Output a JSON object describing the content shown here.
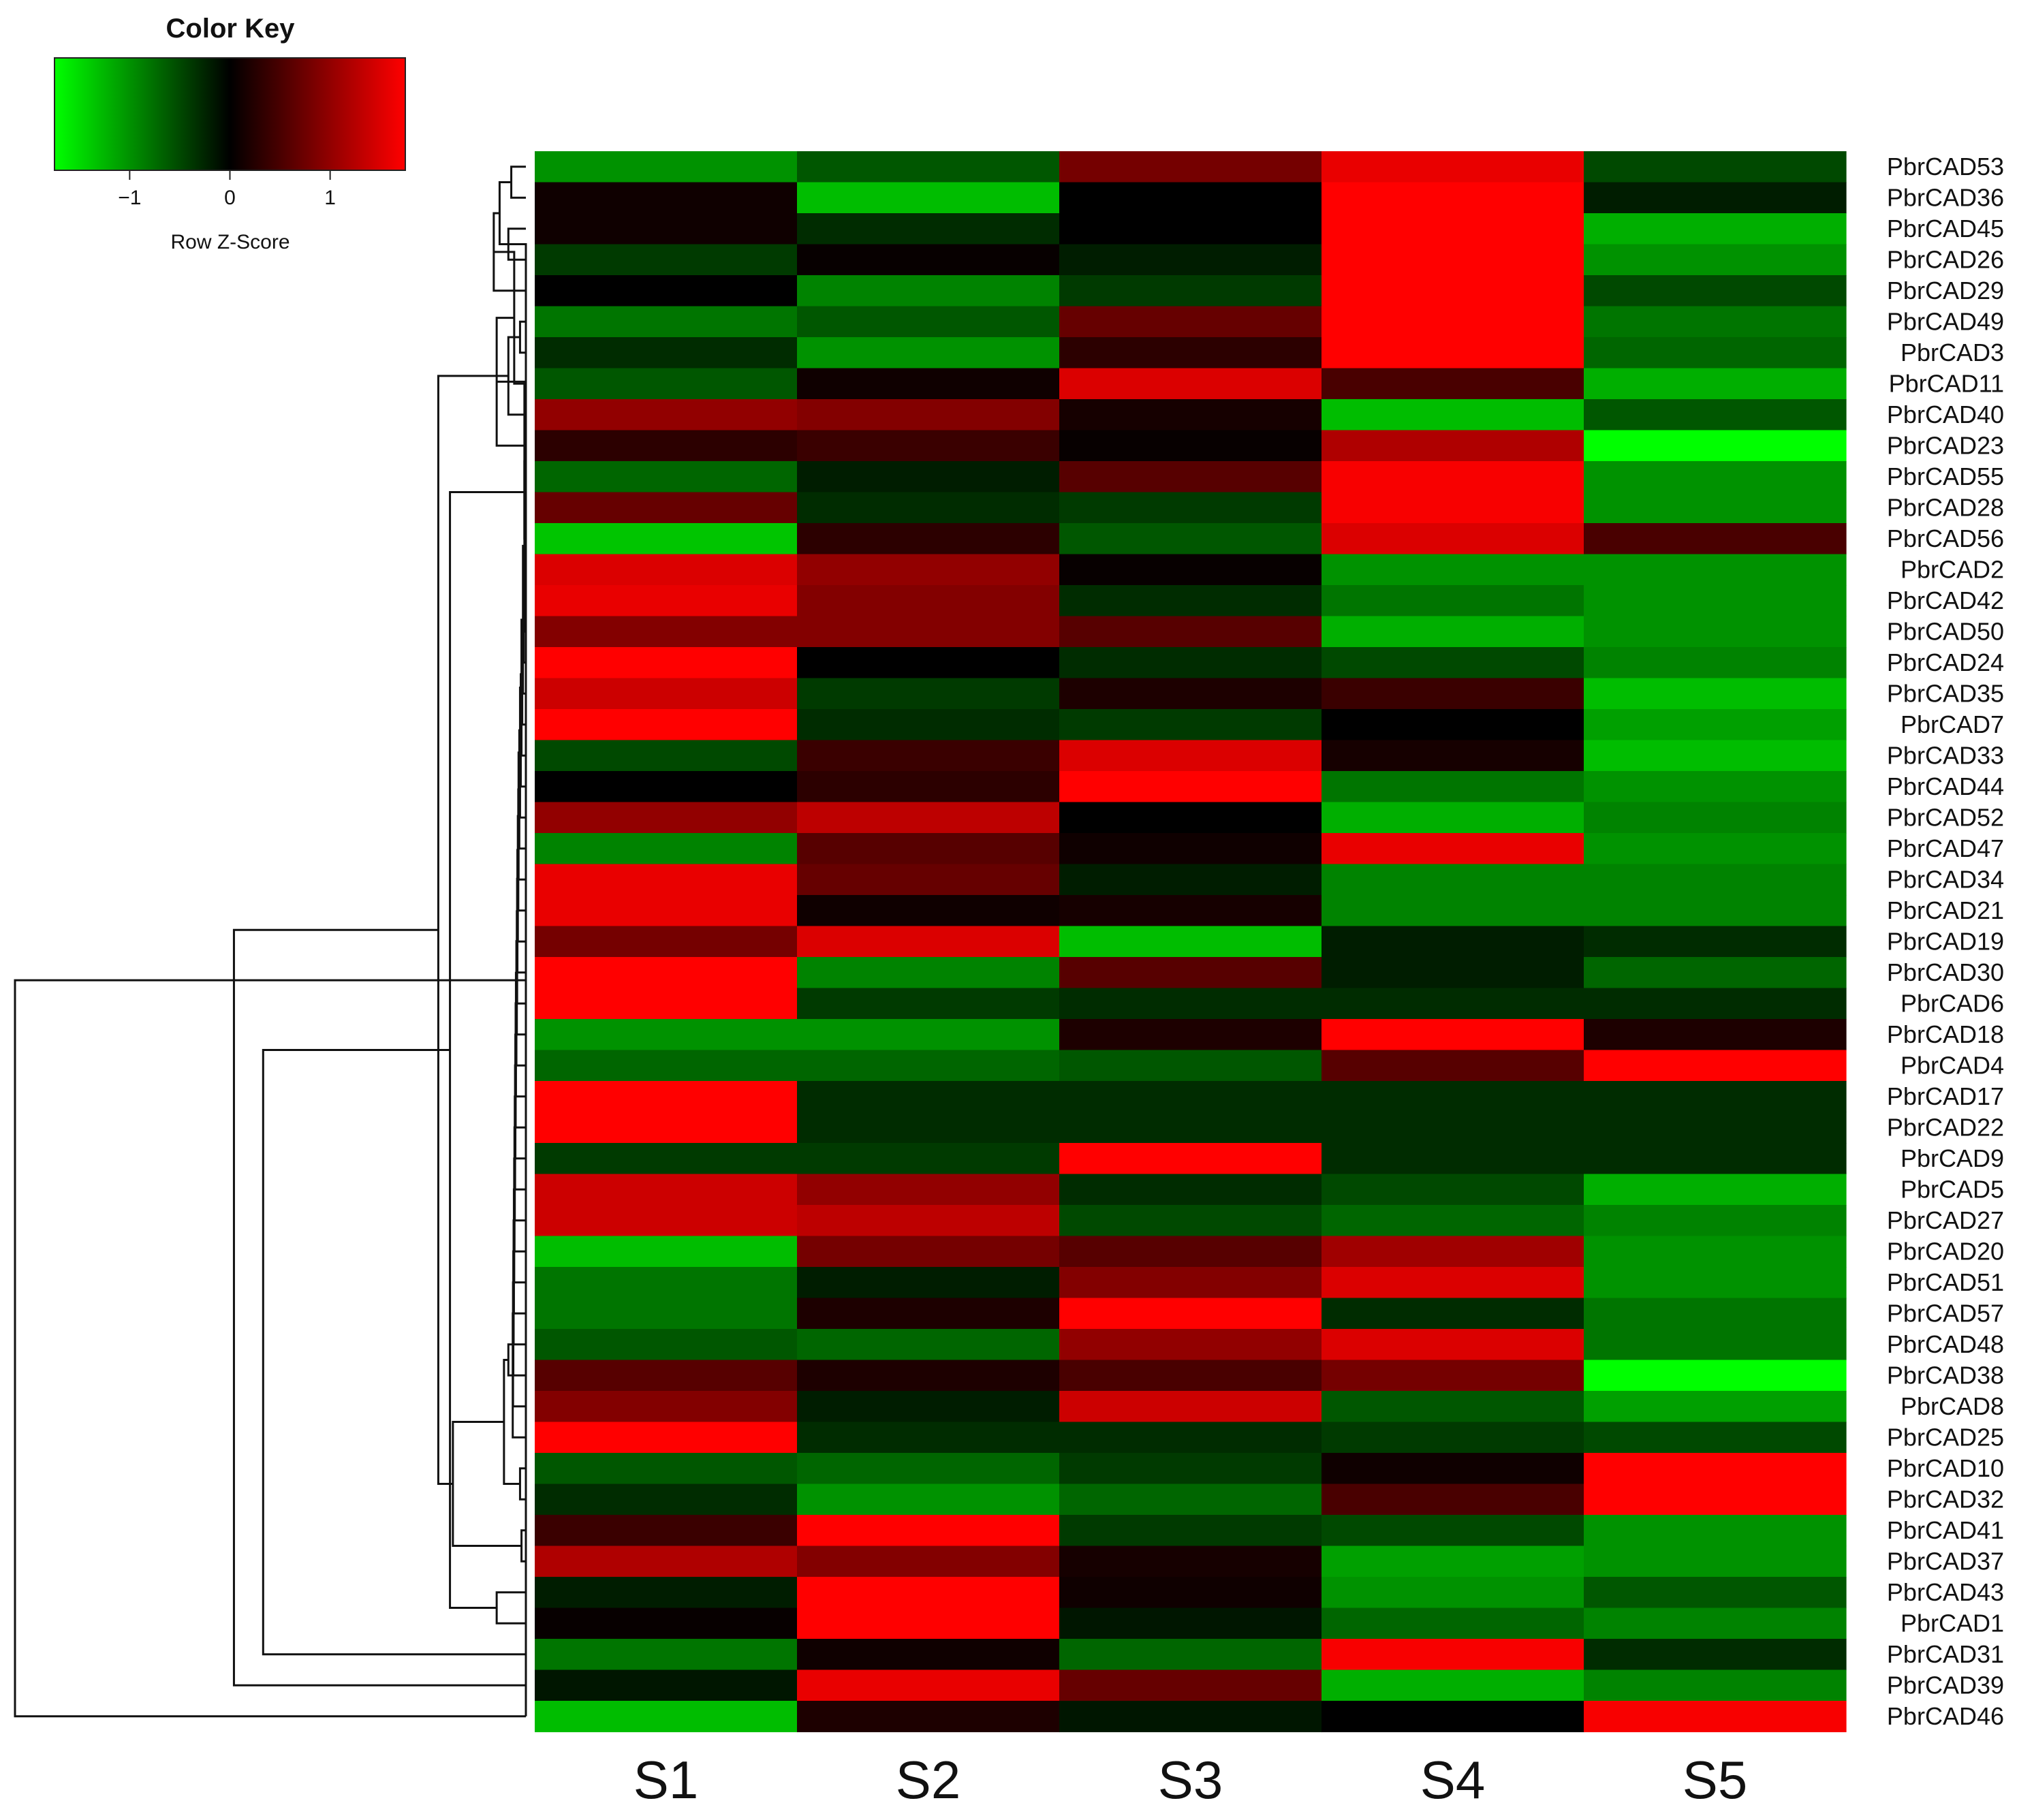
{
  "chart_data": {
    "type": "heatmap",
    "colors": {
      "low": "#00ff00",
      "mid": "#000000",
      "high": "#ff0000"
    },
    "color_key": {
      "title": "Color Key",
      "label": "Row Z-Score",
      "range": [
        -1.75,
        1.75
      ],
      "ticks": [
        -1,
        0,
        1
      ]
    },
    "columns": [
      "S1",
      "S2",
      "S3",
      "S4",
      "S5"
    ],
    "rows": [
      "PbrCAD53",
      "PbrCAD36",
      "PbrCAD45",
      "PbrCAD26",
      "PbrCAD29",
      "PbrCAD49",
      "PbrCAD3",
      "PbrCAD11",
      "PbrCAD40",
      "PbrCAD23",
      "PbrCAD55",
      "PbrCAD28",
      "PbrCAD56",
      "PbrCAD2",
      "PbrCAD42",
      "PbrCAD50",
      "PbrCAD24",
      "PbrCAD35",
      "PbrCAD7",
      "PbrCAD33",
      "PbrCAD44",
      "PbrCAD52",
      "PbrCAD47",
      "PbrCAD34",
      "PbrCAD21",
      "PbrCAD19",
      "PbrCAD30",
      "PbrCAD6",
      "PbrCAD18",
      "PbrCAD4",
      "PbrCAD17",
      "PbrCAD22",
      "PbrCAD9",
      "PbrCAD5",
      "PbrCAD27",
      "PbrCAD20",
      "PbrCAD51",
      "PbrCAD57",
      "PbrCAD48",
      "PbrCAD38",
      "PbrCAD8",
      "PbrCAD25",
      "PbrCAD10",
      "PbrCAD32",
      "PbrCAD41",
      "PbrCAD37",
      "PbrCAD43",
      "PbrCAD1",
      "PbrCAD31",
      "PbrCAD39",
      "PbrCAD46"
    ],
    "values": [
      [
        -1.0,
        -0.6,
        0.8,
        1.6,
        -0.5
      ],
      [
        0.1,
        -1.3,
        0.0,
        1.75,
        -0.2
      ],
      [
        0.1,
        -0.3,
        0.0,
        1.75,
        -1.2
      ],
      [
        -0.4,
        0.05,
        -0.2,
        1.75,
        -1.0
      ],
      [
        0.0,
        -0.9,
        -0.4,
        1.75,
        -0.5
      ],
      [
        -0.8,
        -0.6,
        0.7,
        1.75,
        -0.8
      ],
      [
        -0.3,
        -1.0,
        0.3,
        1.75,
        -0.7
      ],
      [
        -0.6,
        0.1,
        1.5,
        0.5,
        -1.2
      ],
      [
        1.0,
        0.9,
        0.15,
        -1.3,
        -0.6
      ],
      [
        0.3,
        0.4,
        0.05,
        1.2,
        -1.75
      ],
      [
        -0.7,
        -0.2,
        0.6,
        1.7,
        -1.0
      ],
      [
        0.7,
        -0.3,
        -0.4,
        1.7,
        -1.0
      ],
      [
        -1.35,
        0.3,
        -0.6,
        1.5,
        0.5
      ],
      [
        1.5,
        1.0,
        0.05,
        -1.0,
        -1.0
      ],
      [
        1.6,
        0.9,
        -0.3,
        -0.8,
        -1.0
      ],
      [
        0.9,
        0.9,
        0.6,
        -1.2,
        -1.0
      ],
      [
        1.75,
        0.0,
        -0.3,
        -0.5,
        -0.9
      ],
      [
        1.4,
        -0.4,
        0.2,
        0.4,
        -1.3
      ],
      [
        1.75,
        -0.3,
        -0.4,
        0.0,
        -1.1
      ],
      [
        -0.5,
        0.4,
        1.5,
        0.15,
        -1.3
      ],
      [
        0.0,
        0.3,
        1.75,
        -0.8,
        -1.0
      ],
      [
        1.0,
        1.3,
        0.0,
        -1.2,
        -0.9
      ],
      [
        -0.9,
        0.6,
        0.1,
        1.6,
        -1.0
      ],
      [
        1.6,
        0.7,
        -0.2,
        -0.9,
        -0.9
      ],
      [
        1.6,
        0.1,
        0.15,
        -0.9,
        -0.9
      ],
      [
        0.8,
        1.5,
        -1.3,
        -0.2,
        -0.3
      ],
      [
        1.75,
        -0.9,
        0.6,
        -0.2,
        -0.7
      ],
      [
        1.75,
        -0.4,
        -0.3,
        -0.3,
        -0.3
      ],
      [
        -1.0,
        -1.0,
        0.2,
        1.75,
        0.2
      ],
      [
        -0.7,
        -0.7,
        -0.6,
        0.6,
        1.75
      ],
      [
        1.75,
        -0.3,
        -0.3,
        -0.3,
        -0.3
      ],
      [
        1.75,
        -0.3,
        -0.3,
        -0.3,
        -0.3
      ],
      [
        -0.4,
        -0.4,
        1.75,
        -0.3,
        -0.3
      ],
      [
        1.4,
        1.0,
        -0.3,
        -0.5,
        -1.2
      ],
      [
        1.4,
        1.3,
        -0.5,
        -0.7,
        -0.9
      ],
      [
        -1.3,
        0.8,
        0.6,
        1.1,
        -1.0
      ],
      [
        -0.8,
        -0.2,
        0.9,
        1.5,
        -1.0
      ],
      [
        -0.8,
        0.2,
        1.75,
        -0.3,
        -0.8
      ],
      [
        -0.6,
        -0.7,
        1.0,
        1.5,
        -0.8
      ],
      [
        0.6,
        0.2,
        0.5,
        0.8,
        -1.75
      ],
      [
        0.9,
        -0.2,
        1.4,
        -0.6,
        -1.1
      ],
      [
        1.75,
        -0.3,
        -0.3,
        -0.4,
        -0.5
      ],
      [
        -0.6,
        -0.7,
        -0.4,
        0.1,
        1.75
      ],
      [
        -0.3,
        -1.0,
        -0.7,
        0.5,
        1.75
      ],
      [
        0.4,
        1.75,
        -0.4,
        -0.5,
        -1.0
      ],
      [
        1.2,
        0.9,
        0.15,
        -1.1,
        -1.0
      ],
      [
        -0.2,
        1.75,
        0.1,
        -1.0,
        -0.6
      ],
      [
        0.05,
        1.75,
        -0.15,
        -0.7,
        -0.9
      ],
      [
        -0.8,
        0.1,
        -0.7,
        1.7,
        -0.3
      ],
      [
        -0.15,
        1.6,
        0.7,
        -1.2,
        -0.9
      ],
      [
        -1.3,
        0.2,
        -0.15,
        0.0,
        1.7
      ]
    ],
    "row_dendrogram": [
      [
        0,
        1,
        0.01
      ],
      [
        2,
        3,
        0.012
      ],
      [
        51,
        52,
        0.018
      ],
      [
        53,
        4,
        0.022
      ],
      [
        5,
        6,
        0.004
      ],
      [
        54,
        7,
        0.008
      ],
      [
        55,
        8,
        0.012
      ],
      [
        56,
        9,
        0.02
      ],
      [
        10,
        11,
        0.0005
      ],
      [
        58,
        12,
        0.001
      ],
      [
        13,
        14,
        0.0005
      ],
      [
        60,
        15,
        0.001
      ],
      [
        61,
        16,
        0.0015
      ],
      [
        62,
        17,
        0.002
      ],
      [
        63,
        18,
        0.0025
      ],
      [
        64,
        19,
        0.003
      ],
      [
        65,
        20,
        0.0035
      ],
      [
        66,
        21,
        0.004
      ],
      [
        67,
        22,
        0.0045
      ],
      [
        68,
        23,
        0.005
      ],
      [
        69,
        24,
        0.0052
      ],
      [
        70,
        25,
        0.0055
      ],
      [
        71,
        26,
        0.0058
      ],
      [
        72,
        27,
        0.006
      ],
      [
        73,
        28,
        0.0062
      ],
      [
        74,
        29,
        0.0065
      ],
      [
        75,
        30,
        0.0068
      ],
      [
        76,
        31,
        0.007
      ],
      [
        77,
        32,
        0.0072
      ],
      [
        78,
        33,
        0.0074
      ],
      [
        79,
        34,
        0.0076
      ],
      [
        80,
        35,
        0.0078
      ],
      [
        81,
        36,
        0.008
      ],
      [
        82,
        37,
        0.0082
      ],
      [
        83,
        38,
        0.0084
      ],
      [
        84,
        39,
        0.0086
      ],
      [
        85,
        40,
        0.0088
      ],
      [
        86,
        41,
        0.009
      ],
      [
        42,
        43,
        0.004
      ],
      [
        87,
        88,
        0.012
      ],
      [
        44,
        45,
        0.003
      ],
      [
        89,
        90,
        0.015
      ],
      [
        46,
        47,
        0.02
      ],
      [
        91,
        92,
        0.05
      ],
      [
        59,
        93,
        0.052
      ],
      [
        57,
        94,
        0.06
      ],
      [
        50,
        52,
        0.0
      ],
      [
        48,
        95,
        0.18
      ],
      [
        96,
        49,
        0.2
      ],
      [
        97,
        50,
        0.35
      ]
    ]
  }
}
